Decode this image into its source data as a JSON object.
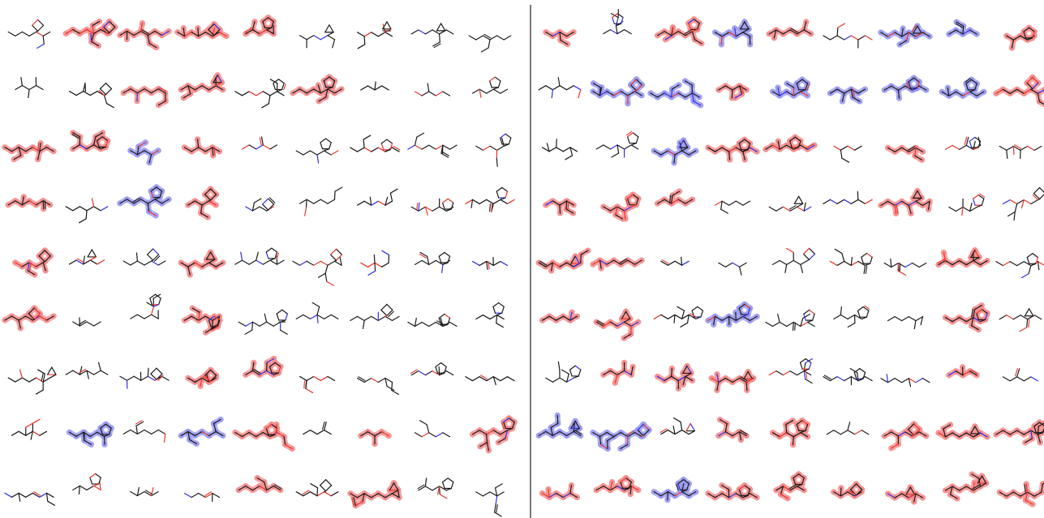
{
  "figure": {
    "panels": [
      {
        "name": "left",
        "rows": [
          [
            "plain",
            "red",
            "red",
            "red",
            "red",
            "plain",
            "plain",
            "plain",
            "plain"
          ],
          [
            "plain",
            "plain",
            "red",
            "red",
            "plain",
            "red",
            "plain",
            "plain",
            "plain"
          ],
          [
            "red",
            "red",
            "blue",
            "red",
            "plain",
            "plain",
            "plain",
            "plain",
            "plain"
          ],
          [
            "red",
            "plain",
            "blue",
            "red",
            "plain",
            "plain",
            "plain",
            "plain",
            "plain"
          ],
          [
            "red",
            "plain",
            "plain",
            "red",
            "plain",
            "plain",
            "plain",
            "plain",
            "plain"
          ],
          [
            "red",
            "plain",
            "plain",
            "red",
            "plain",
            "plain",
            "plain",
            "plain",
            "plain"
          ],
          [
            "plain",
            "plain",
            "plain",
            "red",
            "red",
            "plain",
            "plain",
            "plain",
            "plain"
          ],
          [
            "plain",
            "blue",
            "plain",
            "blue",
            "red",
            "plain",
            "red",
            "plain",
            "red"
          ],
          [
            "plain",
            "plain",
            "plain",
            "plain",
            "red",
            "plain",
            "red",
            "plain",
            "plain"
          ]
        ]
      },
      {
        "name": "right",
        "rows": [
          [
            "red",
            "plain",
            "red",
            "blue",
            "red",
            "plain",
            "blue",
            "blue",
            "red"
          ],
          [
            "plain",
            "blue",
            "blue",
            "red",
            "blue",
            "blue",
            "blue",
            "blue",
            "red"
          ],
          [
            "plain",
            "plain",
            "blue",
            "red",
            "red",
            "plain",
            "red",
            "plain",
            "plain"
          ],
          [
            "red",
            "red",
            "red",
            "plain",
            "plain",
            "plain",
            "red",
            "plain",
            "plain"
          ],
          [
            "red",
            "red",
            "plain",
            "plain",
            "plain",
            "plain",
            "plain",
            "red",
            "plain"
          ],
          [
            "red",
            "red",
            "plain",
            "blue",
            "plain",
            "plain",
            "plain",
            "red",
            "plain"
          ],
          [
            "plain",
            "red",
            "red",
            "red",
            "plain",
            "plain",
            "plain",
            "red",
            "plain"
          ],
          [
            "blue",
            "blue",
            "plain",
            "red",
            "red",
            "plain",
            "red",
            "red",
            "red"
          ],
          [
            "red",
            "red",
            "blue",
            "red",
            "red",
            "red",
            "red",
            "red",
            "red"
          ]
        ]
      }
    ],
    "colors": {
      "bond": "#1a1a1a",
      "oxygen": "#e8352c",
      "nitrogen": "#3030e8",
      "highlight_red": "#f48c8c",
      "highlight_blue": "#9a9af0",
      "divider": "#555555"
    }
  }
}
